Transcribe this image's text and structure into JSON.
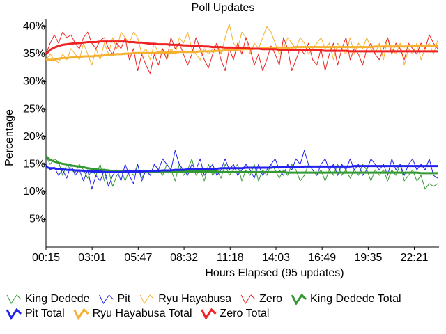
{
  "chart_data": {
    "type": "line",
    "title": "Poll Updates",
    "x_label": "Hours Elapsed (95 updates)",
    "y_label": "Percentage",
    "x": [
      0.25,
      0.5,
      0.75,
      1,
      1.25,
      1.5,
      1.75,
      2,
      2.25,
      2.5,
      2.75,
      3,
      3.25,
      3.5,
      3.75,
      4,
      4.25,
      4.5,
      4.75,
      5,
      5.25,
      5.5,
      5.75,
      6,
      6.25,
      6.5,
      6.75,
      7,
      7.25,
      7.5,
      7.75,
      8,
      8.25,
      8.5,
      8.75,
      9,
      9.25,
      9.5,
      9.75,
      10,
      10.25,
      10.5,
      10.75,
      11,
      11.25,
      11.5,
      11.75,
      12,
      12.25,
      12.5,
      12.75,
      13,
      13.25,
      13.5,
      13.75,
      14,
      14.25,
      14.5,
      14.75,
      15,
      15.25,
      15.5,
      15.75,
      16,
      16.25,
      16.5,
      16.75,
      17,
      17.25,
      17.5,
      17.75,
      18,
      18.25,
      18.5,
      18.75,
      19,
      19.25,
      19.5,
      19.75,
      20,
      20.25,
      20.5,
      20.75,
      21,
      21.25,
      21.5,
      21.75,
      22,
      22.25,
      22.5,
      22.75,
      23,
      23.25,
      23.5,
      23.75
    ],
    "xlim": [
      0.25,
      23.75
    ],
    "xticks": [
      {
        "value": 0.25,
        "label": "00:15"
      },
      {
        "value": 3.0167,
        "label": "03:01"
      },
      {
        "value": 5.7833,
        "label": "05:47"
      },
      {
        "value": 8.5333,
        "label": "08:32"
      },
      {
        "value": 11.3,
        "label": "11:18"
      },
      {
        "value": 14.05,
        "label": "14:03"
      },
      {
        "value": 16.8167,
        "label": "16:49"
      },
      {
        "value": 19.5833,
        "label": "19:35"
      },
      {
        "value": 22.35,
        "label": "22:21"
      }
    ],
    "ylim": [
      0,
      41.3
    ],
    "yticks": [
      {
        "value": 5,
        "label": "5%"
      },
      {
        "value": 10,
        "label": "10%"
      },
      {
        "value": 15,
        "label": "15%"
      },
      {
        "value": 20,
        "label": "20%"
      },
      {
        "value": 25,
        "label": "25%"
      },
      {
        "value": 30,
        "label": "30%"
      },
      {
        "value": 35,
        "label": "35%"
      },
      {
        "value": 40,
        "label": "40%"
      }
    ],
    "grid": false,
    "series": [
      {
        "name": "King Dedede",
        "color": "#339933",
        "line_width": 1,
        "values": [
          16.5,
          15,
          16,
          15.5,
          13,
          15,
          14,
          13.5,
          15,
          14,
          12.5,
          14,
          13,
          15,
          12,
          14,
          11,
          13,
          14,
          12,
          14,
          13,
          15,
          12.5,
          14,
          13,
          15,
          14,
          13,
          15,
          14,
          12,
          15,
          13,
          14,
          16,
          13,
          14,
          12,
          15,
          13,
          14,
          12.5,
          15,
          13,
          14,
          15,
          12,
          14,
          13,
          15,
          12,
          14,
          13,
          15,
          14,
          12.5,
          14,
          13,
          15,
          14,
          12,
          13,
          15,
          14,
          13,
          14,
          12,
          14,
          13,
          15,
          13,
          14,
          12.5,
          14,
          13,
          15,
          14,
          12,
          14,
          13,
          14,
          12,
          14,
          13,
          15,
          12,
          13,
          14,
          12,
          13,
          10.5,
          11.5,
          11,
          11.5
        ]
      },
      {
        "name": "Pit",
        "color": "#2222ee",
        "line_width": 1,
        "values": [
          15,
          14,
          14.5,
          13,
          14,
          12.5,
          15,
          13,
          14,
          12,
          14,
          10.5,
          13,
          12,
          14,
          11,
          13,
          14,
          12,
          15,
          13,
          11.5,
          15,
          12,
          14,
          13,
          15,
          14,
          16,
          15,
          14,
          17.5,
          15,
          14,
          13,
          15,
          14,
          16,
          13,
          14,
          15,
          13,
          14,
          16,
          14,
          15,
          13,
          14,
          15,
          14,
          12.5,
          15,
          13,
          14,
          15,
          16,
          14,
          13,
          15,
          14,
          16,
          15,
          17.5,
          15,
          14,
          13,
          15,
          16,
          14,
          15,
          13,
          15,
          14,
          16,
          14,
          15,
          13,
          14,
          16,
          15,
          14,
          15,
          13,
          16,
          14,
          15,
          13,
          15,
          16,
          14,
          15,
          14,
          16,
          13,
          12.5
        ]
      },
      {
        "name": "Ryu Hayabusa",
        "color": "#f5b030",
        "line_width": 1,
        "values": [
          34,
          35,
          34,
          33.5,
          35,
          34,
          36,
          35,
          34,
          37,
          35,
          33,
          36,
          34,
          37,
          35,
          38,
          36,
          39,
          38,
          37,
          39,
          38,
          35,
          36,
          34,
          37,
          35,
          36,
          34,
          36,
          35,
          38,
          37,
          39,
          36,
          35,
          34,
          36,
          35,
          36,
          37,
          35,
          38,
          40.5,
          37,
          36,
          39,
          38,
          35,
          37,
          36,
          38,
          40,
          39,
          37,
          35,
          36,
          38,
          37,
          36,
          38,
          37,
          35,
          36,
          37,
          38,
          36,
          37,
          34,
          37,
          36,
          35,
          38,
          35,
          37,
          36,
          38,
          36,
          35,
          37,
          34,
          38,
          36,
          35,
          37,
          33,
          36,
          35,
          37,
          34,
          36,
          37,
          35,
          37.5
        ]
      },
      {
        "name": "Zero",
        "color": "#ee2222",
        "line_width": 1,
        "values": [
          35,
          37,
          38.5,
          37,
          39,
          38,
          38.5,
          37,
          36,
          38,
          39,
          37,
          36,
          37.5,
          38,
          36,
          35,
          37,
          36,
          38,
          34,
          36,
          32,
          35,
          33,
          31.5,
          35,
          33,
          36,
          34,
          38,
          36,
          37,
          35,
          33,
          35,
          38,
          36,
          34,
          32.5,
          35,
          37,
          34,
          32,
          36,
          34,
          37,
          35,
          38,
          36,
          33,
          35,
          32,
          34,
          36.5,
          35,
          33,
          38,
          36,
          32,
          34,
          36,
          35,
          37,
          34,
          33,
          36,
          32,
          35,
          37,
          33,
          36,
          38,
          34,
          36,
          35,
          33,
          36,
          37,
          35,
          34,
          36,
          38,
          35,
          37,
          36,
          34,
          37,
          36,
          35,
          37,
          36,
          38.5,
          37,
          36
        ]
      },
      {
        "name": "King Dedede Total",
        "color": "#339933",
        "line_width": 3,
        "values": [
          16.5,
          15.8,
          15.5,
          15.3,
          15.1,
          15,
          14.8,
          14.7,
          14.6,
          14.5,
          14.3,
          14.2,
          14.1,
          14,
          14,
          13.9,
          13.8,
          13.8,
          13.8,
          13.7,
          13.7,
          13.7,
          13.7,
          13.7,
          13.7,
          13.7,
          13.7,
          13.7,
          13.7,
          13.7,
          13.7,
          13.7,
          13.7,
          13.7,
          13.7,
          13.7,
          13.7,
          13.7,
          13.7,
          13.7,
          13.7,
          13.7,
          13.6,
          13.6,
          13.6,
          13.6,
          13.6,
          13.6,
          13.6,
          13.6,
          13.6,
          13.6,
          13.6,
          13.6,
          13.6,
          13.6,
          13.6,
          13.6,
          13.5,
          13.5,
          13.5,
          13.5,
          13.5,
          13.5,
          13.5,
          13.5,
          13.5,
          13.5,
          13.5,
          13.5,
          13.5,
          13.5,
          13.5,
          13.5,
          13.5,
          13.5,
          13.5,
          13.5,
          13.5,
          13.5,
          13.5,
          13.5,
          13.5,
          13.5,
          13.5,
          13.5,
          13.5,
          13.5,
          13.5,
          13.5,
          13.4,
          13.4,
          13.4,
          13.4,
          13.4
        ]
      },
      {
        "name": "Pit Total",
        "color": "#2222ee",
        "line_width": 3,
        "values": [
          14.5,
          14.3,
          14.3,
          14.1,
          14.1,
          14,
          14,
          13.9,
          13.9,
          13.8,
          13.8,
          13.7,
          13.7,
          13.7,
          13.6,
          13.6,
          13.6,
          13.6,
          13.6,
          13.7,
          13.7,
          13.7,
          13.7,
          13.7,
          13.8,
          13.8,
          13.8,
          13.8,
          13.9,
          13.9,
          13.9,
          14,
          14,
          14,
          14.1,
          14.1,
          14.1,
          14.2,
          14.2,
          14.2,
          14.2,
          14.2,
          14.3,
          14.3,
          14.3,
          14.3,
          14.3,
          14.3,
          14.4,
          14.4,
          14.4,
          14.4,
          14.4,
          14.4,
          14.4,
          14.5,
          14.5,
          14.5,
          14.5,
          14.5,
          14.5,
          14.5,
          14.6,
          14.6,
          14.6,
          14.6,
          14.6,
          14.6,
          14.6,
          14.6,
          14.6,
          14.6,
          14.6,
          14.6,
          14.7,
          14.7,
          14.7,
          14.7,
          14.7,
          14.7,
          14.7,
          14.7,
          14.7,
          14.7,
          14.7,
          14.7,
          14.7,
          14.7,
          14.7,
          14.7,
          14.7,
          14.7,
          14.7,
          14.7,
          14.7
        ]
      },
      {
        "name": "Ryu Hayabusa Total",
        "color": "#f5b030",
        "line_width": 3,
        "values": [
          34,
          34,
          34,
          34.2,
          34.3,
          34.3,
          34.4,
          34.5,
          34.5,
          34.6,
          34.6,
          34.6,
          34.7,
          34.7,
          34.8,
          34.8,
          34.9,
          35,
          35,
          35.1,
          35.1,
          35.2,
          35.2,
          35.2,
          35.2,
          35.2,
          35.2,
          35.3,
          35.3,
          35.3,
          35.3,
          35.3,
          35.4,
          35.4,
          35.4,
          35.4,
          35.4,
          35.5,
          35.5,
          35.5,
          35.5,
          35.6,
          35.6,
          35.7,
          35.7,
          35.8,
          35.8,
          35.9,
          35.9,
          35.9,
          36,
          36,
          36.1,
          36.1,
          36.1,
          36.2,
          36.2,
          36.2,
          36.2,
          36.2,
          36.3,
          36.3,
          36.3,
          36.3,
          36.3,
          36.3,
          36.3,
          36.3,
          36.3,
          36.3,
          36.3,
          36.3,
          36.3,
          36.3,
          36.3,
          36.3,
          36.3,
          36.3,
          36.3,
          36.4,
          36.4,
          36.4,
          36.4,
          36.4,
          36.4,
          36.4,
          36.4,
          36.4,
          36.5,
          36.5,
          36.5,
          36.5,
          36.5,
          36.5,
          36.5
        ]
      },
      {
        "name": "Zero Total",
        "color": "#ee2222",
        "line_width": 3,
        "values": [
          35,
          35.8,
          36.2,
          36.5,
          36.7,
          36.8,
          36.9,
          37,
          37,
          37.1,
          37.2,
          37.2,
          37.2,
          37.3,
          37.3,
          37.3,
          37.3,
          37.3,
          37.3,
          37.3,
          37.2,
          37.2,
          37.1,
          37.1,
          37,
          36.9,
          36.9,
          36.8,
          36.8,
          36.8,
          36.7,
          36.7,
          36.7,
          36.6,
          36.6,
          36.5,
          36.5,
          36.5,
          36.4,
          36.4,
          36.3,
          36.3,
          36.3,
          36.2,
          36.2,
          36.2,
          36.1,
          36.1,
          36.1,
          36,
          36,
          36,
          35.9,
          35.9,
          35.9,
          35.9,
          35.8,
          35.8,
          35.8,
          35.8,
          35.8,
          35.8,
          35.7,
          35.7,
          35.7,
          35.7,
          35.7,
          35.6,
          35.6,
          35.6,
          35.6,
          35.6,
          35.6,
          35.5,
          35.5,
          35.5,
          35.5,
          35.5,
          35.5,
          35.5,
          35.5,
          35.5,
          35.5,
          35.5,
          35.5,
          35.5,
          35.5,
          35.5,
          35.5,
          35.5,
          35.5,
          35.5,
          35.5,
          35.5,
          35.5
        ]
      }
    ]
  }
}
